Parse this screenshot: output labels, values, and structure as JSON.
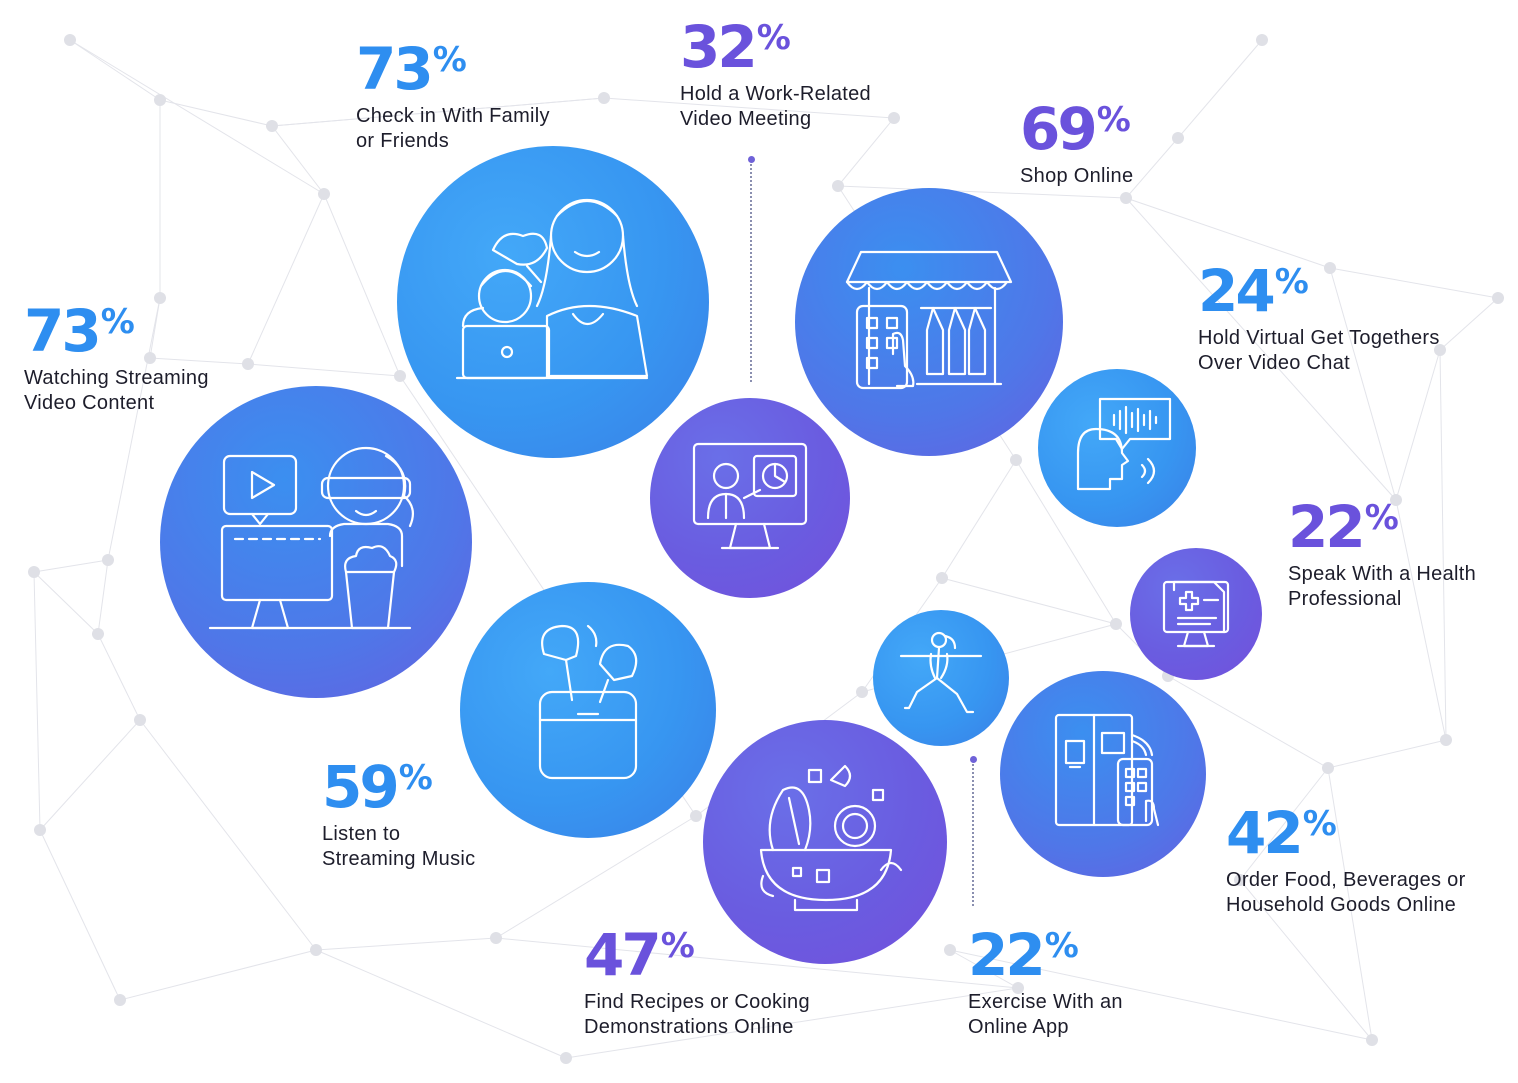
{
  "stats": [
    {
      "value": "73",
      "sign": "%",
      "label": "Watching Streaming\nVideo Content",
      "color": "#2e8ef0"
    },
    {
      "value": "73",
      "sign": "%",
      "label": "Check in With Family\nor Friends",
      "color": "#2e8ef0"
    },
    {
      "value": "32",
      "sign": "%",
      "label": "Hold a Work-Related\nVideo Meeting",
      "color": "#6a52dc"
    },
    {
      "value": "69",
      "sign": "%",
      "label": "Shop Online",
      "color": "#6a52dc"
    },
    {
      "value": "24",
      "sign": "%",
      "label": "Hold Virtual Get Togethers\nOver Video Chat",
      "color": "#2e8ef0"
    },
    {
      "value": "22",
      "sign": "%",
      "label": "Speak With a Health\nProfessional",
      "color": "#6a52dc"
    },
    {
      "value": "42",
      "sign": "%",
      "label": "Order Food, Beverages or\nHousehold Goods Online",
      "color": "#2e8ef0"
    },
    {
      "value": "22",
      "sign": "%",
      "label": "Exercise With an\nOnline App",
      "color": "#2e8ef0"
    },
    {
      "value": "47",
      "sign": "%",
      "label": "Find Recipes or Cooking\nDemonstrations Online",
      "color": "#6a52dc"
    },
    {
      "value": "59",
      "sign": "%",
      "label": "Listen to\nStreaming Music",
      "color": "#2e8ef0"
    }
  ],
  "icons": [
    "streaming-video-icon",
    "family-laptop-icon",
    "video-meeting-icon",
    "online-shop-icon",
    "voice-chat-icon",
    "health-record-icon",
    "smart-fridge-icon",
    "yoga-icon",
    "salad-bowl-icon",
    "earbuds-icon"
  ]
}
